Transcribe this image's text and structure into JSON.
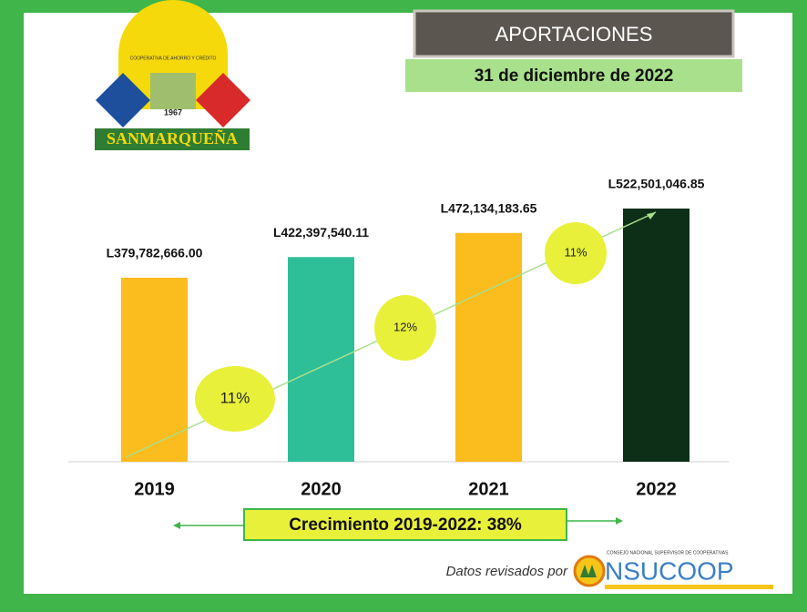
{
  "header": {
    "title": "APORTACIONES",
    "date": "31 de diciembre de 2022"
  },
  "logo": {
    "name": "SANMARQUEÑA",
    "year": "1967",
    "motto": "COOPERATIVA DE AHORRO Y CRÉDITO"
  },
  "chart_data": {
    "type": "bar",
    "categories": [
      "2019",
      "2020",
      "2021",
      "2022"
    ],
    "values": [
      379782666.0,
      422397540.11,
      472134183.65,
      522501046.85
    ],
    "value_labels": [
      "L379,782,666.00",
      "L422,397,540.11",
      "L472,134,183.65",
      "L522,501,046.85"
    ],
    "colors": [
      "#fbbc1d",
      "#2fbf98",
      "#fbbc1d",
      "#0d2e17"
    ],
    "annotations": [
      "11%",
      "12%",
      "11%"
    ],
    "footer": "Crecimiento 2019-2022: 38%"
  },
  "source": {
    "text": "Datos revisados por",
    "org": "NSUCOOP",
    "org_full": "CONSEJO NACIONAL SUPERVISOR DE COOPERATIVAS"
  }
}
